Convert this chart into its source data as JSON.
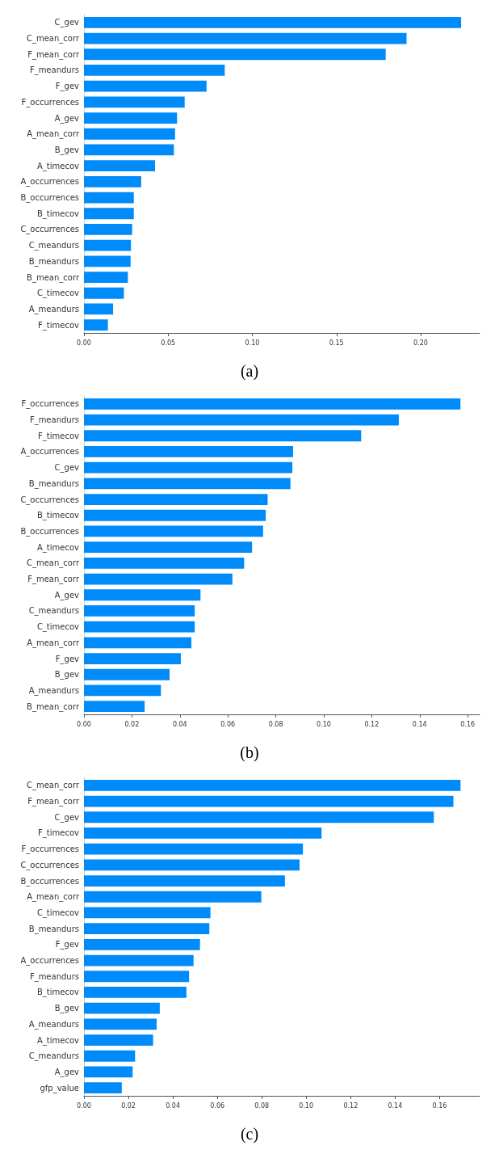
{
  "chart_data": [
    {
      "type": "bar",
      "orientation": "horizontal",
      "title": "(a)",
      "color": "#008bfb",
      "grid": false,
      "categories": [
        "C_gev",
        "C_mean_corr",
        "F_mean_corr",
        "F_meandurs",
        "F_gev",
        "F_occurrences",
        "A_gev",
        "A_mean_corr",
        "B_gev",
        "A_timecov",
        "A_occurrences",
        "B_occurrences",
        "B_timecov",
        "C_occurrences",
        "C_meandurs",
        "B_meandurs",
        "B_mean_corr",
        "C_timecov",
        "A_meandurs",
        "F_timecov"
      ],
      "values": [
        0.224,
        0.1916,
        0.1792,
        0.0836,
        0.0728,
        0.0598,
        0.0553,
        0.0541,
        0.0534,
        0.0422,
        0.034,
        0.0296,
        0.0296,
        0.0286,
        0.0279,
        0.0277,
        0.0261,
        0.0237,
        0.0173,
        0.0142
      ],
      "xlim": [
        0,
        0.235
      ],
      "xticks": [
        {
          "value": 0,
          "label": "0.00"
        },
        {
          "value": 0.05,
          "label": "0.05"
        },
        {
          "value": 0.1,
          "label": "0.10"
        },
        {
          "value": 0.15,
          "label": "0.15"
        },
        {
          "value": 0.2,
          "label": "0.20"
        }
      ]
    },
    {
      "type": "bar",
      "orientation": "horizontal",
      "title": "(b)",
      "color": "#008bfb",
      "grid": false,
      "categories": [
        "F_occurrences",
        "F_meandurs",
        "F_timecov",
        "A_occurrences",
        "C_gev",
        "B_meandurs",
        "C_occurrences",
        "B_timecov",
        "B_occurrences",
        "A_timecov",
        "C_mean_corr",
        "F_mean_corr",
        "A_gev",
        "C_meandurs",
        "C_timecov",
        "A_mean_corr",
        "F_gev",
        "B_gev",
        "A_meandurs",
        "B_mean_corr"
      ],
      "values": [
        0.157,
        0.1313,
        0.1156,
        0.0872,
        0.0869,
        0.0861,
        0.0766,
        0.0758,
        0.0747,
        0.0701,
        0.0668,
        0.0619,
        0.0486,
        0.0462,
        0.0462,
        0.0448,
        0.0404,
        0.0357,
        0.0321,
        0.0253
      ],
      "xlim": [
        0,
        0.165
      ],
      "xticks": [
        {
          "value": 0,
          "label": "0.00"
        },
        {
          "value": 0.02,
          "label": "0.02"
        },
        {
          "value": 0.04,
          "label": "0.04"
        },
        {
          "value": 0.06,
          "label": "0.06"
        },
        {
          "value": 0.08,
          "label": "0.08"
        },
        {
          "value": 0.1,
          "label": "0.10"
        },
        {
          "value": 0.12,
          "label": "0.12"
        },
        {
          "value": 0.14,
          "label": "0.14"
        },
        {
          "value": 0.16,
          "label": "0.16"
        }
      ]
    },
    {
      "type": "bar",
      "orientation": "horizontal",
      "title": "(c)",
      "color": "#008bfb",
      "grid": false,
      "categories": [
        "C_mean_corr",
        "F_mean_corr",
        "C_gev",
        "F_timecov",
        "F_occurrences",
        "C_occurrences",
        "B_occurrences",
        "A_mean_corr",
        "C_timecov",
        "B_meandurs",
        "F_gev",
        "A_occurrences",
        "F_meandurs",
        "B_timecov",
        "B_gev",
        "A_meandurs",
        "A_timecov",
        "C_meandurs",
        "A_gev",
        "gfp_value"
      ],
      "values": [
        0.1694,
        0.1662,
        0.1574,
        0.1069,
        0.0985,
        0.097,
        0.0904,
        0.0798,
        0.0569,
        0.0564,
        0.0522,
        0.0493,
        0.0473,
        0.0461,
        0.0341,
        0.0327,
        0.0311,
        0.023,
        0.0219,
        0.017
      ],
      "xlim": [
        0,
        0.178
      ],
      "xticks": [
        {
          "value": 0,
          "label": "0.00"
        },
        {
          "value": 0.02,
          "label": "0.02"
        },
        {
          "value": 0.04,
          "label": "0.04"
        },
        {
          "value": 0.06,
          "label": "0.06"
        },
        {
          "value": 0.08,
          "label": "0.08"
        },
        {
          "value": 0.1,
          "label": "0.10"
        },
        {
          "value": 0.12,
          "label": "0.12"
        },
        {
          "value": 0.14,
          "label": "0.14"
        },
        {
          "value": 0.16,
          "label": "0.16"
        }
      ]
    }
  ]
}
